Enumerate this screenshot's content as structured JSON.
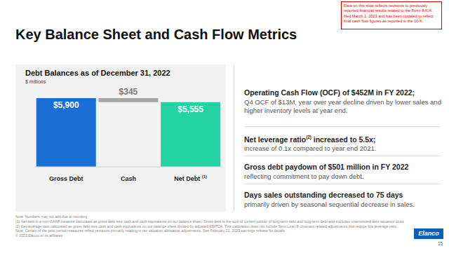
{
  "chart_data": {
    "type": "waterfall",
    "title": "Debt Balances as of December 31, 2022",
    "subtitle": "$ millions",
    "categories": [
      "Gross Debt",
      "Cash",
      "Net Debt (1)"
    ],
    "values": [
      5900,
      345,
      5555
    ],
    "value_labels": [
      "$5,900",
      "$345",
      "$5,555"
    ],
    "colors": [
      "#1a6fd4",
      "#a6a6a6",
      "#23d3a3"
    ],
    "ylim": [
      0,
      5900
    ],
    "data_labels": true,
    "tick_labels": "x"
  },
  "slide": {
    "title": "Key Balance Sheet and Cash Flow Metrics",
    "notice": "Data on this slide reflects revisions to previously reported financial results related to the Form 8-K/A filed March 1, 2023 and has been updated to reflect final cash flow figures as reported in the 10-K.",
    "highlights": [
      {
        "heading": "Operating Cash Flow (OCF) of $452M in FY 2022;",
        "text": "Q4 OCF of $13M, year over year decline driven by lower sales and higher inventory levels at year end."
      },
      {
        "heading": "Net leverage ratio(2) increased to 5.5x;",
        "text": "increase of 0.1x compared to year end 2021."
      },
      {
        "heading": "Gross debt paydown of $501 million in FY 2022",
        "text": "reflecting commitment to pay down debt."
      },
      {
        "heading": "Days sales outstanding decreased to 75 days",
        "text": "primarily driven by seasonal sequential decrease in sales."
      }
    ],
    "footnotes": [
      "Note: Numbers may not add due to rounding",
      "(1) Net debt is a non-GAAP measure calculated as gross debt less cash and cash equivalents on our balance sheet. Gross debt is the sum of current portion of long-term debt and long-term debt and excludes unamortized debt issuance costs (2) Net leverage ratio calculated as gross debt less cash and cash equivalents on our balance sheet divided by adjusted EBITDA. This calculation does not include Term Loan B covenant-related adjustments that reduce this leverage ratio.",
      "Note: Certain of the prior period measures reflect revisions primarily relating to tax valuation allowance adjustments. See February 21, 2023 earnings release for details.",
      "© 2023 Elanco or its affiliates"
    ],
    "logo": "Elanco",
    "page": 15
  }
}
